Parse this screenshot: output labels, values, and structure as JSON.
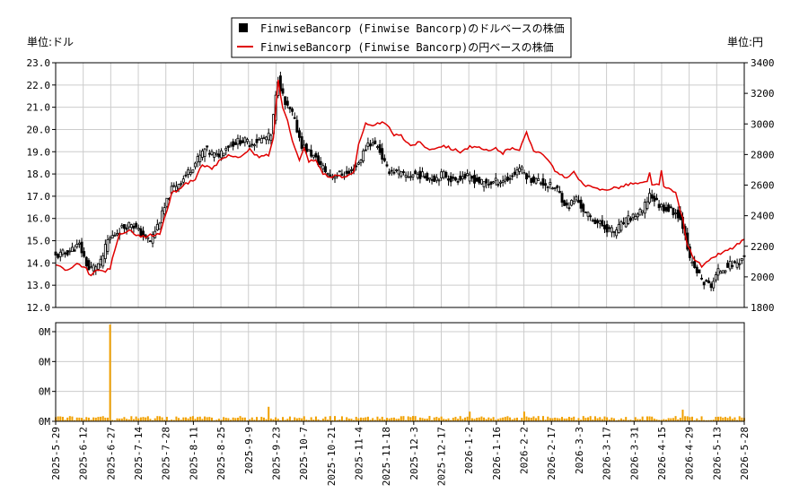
{
  "chart_data": [
    {
      "type": "candlestick+line",
      "left_axis_unit": "単位:ドル",
      "right_axis_unit": "単位:円",
      "legend": [
        {
          "label": "FinwiseBancorp (Finwise Bancorp)のドルベースの株価",
          "color": "#000000",
          "marker": "square"
        },
        {
          "label": "FinwiseBancorp (Finwise Bancorp)の円ベースの株価",
          "color": "#e00000",
          "marker": "line"
        }
      ],
      "legend_placement": "top-center",
      "grid": true,
      "ylim_left": [
        12.0,
        23.0
      ],
      "ylim_right": [
        1800,
        3400
      ],
      "left_ticks": [
        "12.0",
        "13.0",
        "14.0",
        "15.0",
        "16.0",
        "17.0",
        "18.0",
        "19.0",
        "20.0",
        "21.0",
        "22.0",
        "23.0"
      ],
      "right_ticks": [
        "1800",
        "2000",
        "2200",
        "2400",
        "2600",
        "2800",
        "3000",
        "3200",
        "3400"
      ],
      "x_ticks": [
        "2025-5-29",
        "2025-6-12",
        "2025-6-27",
        "2025-7-14",
        "2025-7-28",
        "2025-8-11",
        "2025-8-25",
        "2025-9-9",
        "2025-9-23",
        "2025-10-7",
        "2025-10-21",
        "2025-11-4",
        "2025-11-18",
        "2025-12-3",
        "2025-12-17",
        "2026-1-2",
        "2026-1-16",
        "2026-2-2",
        "2026-2-17",
        "2026-3-3",
        "2026-3-17",
        "2026-3-31",
        "2026-4-15",
        "2026-4-29",
        "2026-5-13",
        "2026-5-28"
      ],
      "usd_close_keypoints": [
        [
          0,
          14.3
        ],
        [
          5,
          14.5
        ],
        [
          10,
          14.8
        ],
        [
          14,
          13.7
        ],
        [
          19,
          14.0
        ],
        [
          22,
          15.0
        ],
        [
          27,
          15.5
        ],
        [
          32,
          15.8
        ],
        [
          36,
          15.3
        ],
        [
          40,
          15.0
        ],
        [
          44,
          15.9
        ],
        [
          49,
          17.3
        ],
        [
          54,
          17.8
        ],
        [
          59,
          18.5
        ],
        [
          63,
          19.1
        ],
        [
          68,
          18.8
        ],
        [
          73,
          19.3
        ],
        [
          78,
          19.5
        ],
        [
          83,
          19.4
        ],
        [
          88,
          19.6
        ],
        [
          91,
          19.7
        ],
        [
          94,
          22.3
        ],
        [
          97,
          21.1
        ],
        [
          100,
          20.7
        ],
        [
          104,
          19.3
        ],
        [
          108,
          18.9
        ],
        [
          112,
          18.4
        ],
        [
          116,
          17.9
        ],
        [
          120,
          18.0
        ],
        [
          124,
          18.0
        ],
        [
          128,
          18.5
        ],
        [
          132,
          19.4
        ],
        [
          136,
          19.3
        ],
        [
          140,
          18.2
        ],
        [
          144,
          18.1
        ],
        [
          148,
          17.9
        ],
        [
          152,
          18.0
        ],
        [
          156,
          17.9
        ],
        [
          160,
          17.8
        ],
        [
          164,
          18.0
        ],
        [
          168,
          17.7
        ],
        [
          172,
          17.9
        ],
        [
          176,
          17.8
        ],
        [
          180,
          17.6
        ],
        [
          184,
          17.6
        ],
        [
          188,
          17.7
        ],
        [
          192,
          17.8
        ],
        [
          196,
          18.3
        ],
        [
          200,
          17.8
        ],
        [
          204,
          17.7
        ],
        [
          208,
          17.5
        ],
        [
          212,
          17.3
        ],
        [
          216,
          16.5
        ],
        [
          220,
          16.9
        ],
        [
          224,
          16.2
        ],
        [
          228,
          15.9
        ],
        [
          232,
          15.6
        ],
        [
          236,
          15.4
        ],
        [
          240,
          15.8
        ],
        [
          244,
          16.1
        ],
        [
          248,
          16.3
        ],
        [
          251,
          17.1
        ],
        [
          255,
          16.6
        ],
        [
          259,
          16.4
        ],
        [
          263,
          16.2
        ],
        [
          266,
          15.4
        ],
        [
          268,
          14.1
        ],
        [
          271,
          13.6
        ],
        [
          274,
          13.1
        ],
        [
          277,
          13.0
        ],
        [
          280,
          13.6
        ],
        [
          284,
          13.9
        ],
        [
          288,
          14.0
        ],
        [
          291,
          14.3
        ]
      ],
      "jpy_close_keypoints": [
        [
          0,
          2080
        ],
        [
          5,
          2040
        ],
        [
          9,
          2080
        ],
        [
          13,
          2050
        ],
        [
          15,
          2000
        ],
        [
          17,
          2050
        ],
        [
          20,
          2030
        ],
        [
          23,
          2060
        ],
        [
          27,
          2280
        ],
        [
          32,
          2300
        ],
        [
          36,
          2260
        ],
        [
          40,
          2270
        ],
        [
          44,
          2280
        ],
        [
          49,
          2540
        ],
        [
          54,
          2600
        ],
        [
          59,
          2640
        ],
        [
          62,
          2740
        ],
        [
          66,
          2700
        ],
        [
          70,
          2770
        ],
        [
          74,
          2800
        ],
        [
          78,
          2780
        ],
        [
          82,
          2830
        ],
        [
          86,
          2780
        ],
        [
          90,
          2800
        ],
        [
          92,
          2900
        ],
        [
          94,
          3290
        ],
        [
          96,
          3100
        ],
        [
          98,
          3030
        ],
        [
          100,
          2900
        ],
        [
          103,
          2760
        ],
        [
          105,
          2840
        ],
        [
          107,
          2760
        ],
        [
          110,
          2760
        ],
        [
          113,
          2680
        ],
        [
          116,
          2650
        ],
        [
          119,
          2660
        ],
        [
          122,
          2650
        ],
        [
          126,
          2690
        ],
        [
          128,
          2870
        ],
        [
          131,
          3000
        ],
        [
          134,
          2980
        ],
        [
          137,
          3010
        ],
        [
          140,
          2990
        ],
        [
          143,
          2930
        ],
        [
          146,
          2920
        ],
        [
          150,
          2860
        ],
        [
          154,
          2880
        ],
        [
          158,
          2830
        ],
        [
          161,
          2850
        ],
        [
          164,
          2860
        ],
        [
          167,
          2840
        ],
        [
          171,
          2820
        ],
        [
          175,
          2850
        ],
        [
          179,
          2840
        ],
        [
          183,
          2820
        ],
        [
          186,
          2840
        ],
        [
          189,
          2810
        ],
        [
          193,
          2850
        ],
        [
          196,
          2830
        ],
        [
          199,
          2940
        ],
        [
          202,
          2830
        ],
        [
          204,
          2820
        ],
        [
          207,
          2790
        ],
        [
          211,
          2690
        ],
        [
          215,
          2650
        ],
        [
          219,
          2680
        ],
        [
          223,
          2600
        ],
        [
          227,
          2580
        ],
        [
          231,
          2570
        ],
        [
          235,
          2580
        ],
        [
          239,
          2590
        ],
        [
          243,
          2610
        ],
        [
          247,
          2610
        ],
        [
          250,
          2620
        ],
        [
          254,
          2600
        ],
        [
          258,
          2580
        ],
        [
          262,
          2550
        ],
        [
          265,
          2380
        ],
        [
          267,
          2200
        ],
        [
          270,
          2120
        ],
        [
          273,
          2070
        ],
        [
          276,
          2100
        ],
        [
          279,
          2140
        ],
        [
          282,
          2160
        ],
        [
          286,
          2190
        ],
        [
          289,
          2220
        ],
        [
          292,
          2260
        ]
      ],
      "jpy_bumps": [
        [
          251,
          2680
        ],
        [
          256,
          2700
        ]
      ],
      "volume_ticks": [
        "0M",
        "0M",
        "0M",
        "0M"
      ],
      "volume_spikes": [
        [
          23,
          1.0
        ],
        [
          90,
          0.15
        ],
        [
          175,
          0.1
        ],
        [
          198,
          0.1
        ],
        [
          265,
          0.12
        ]
      ]
    }
  ]
}
